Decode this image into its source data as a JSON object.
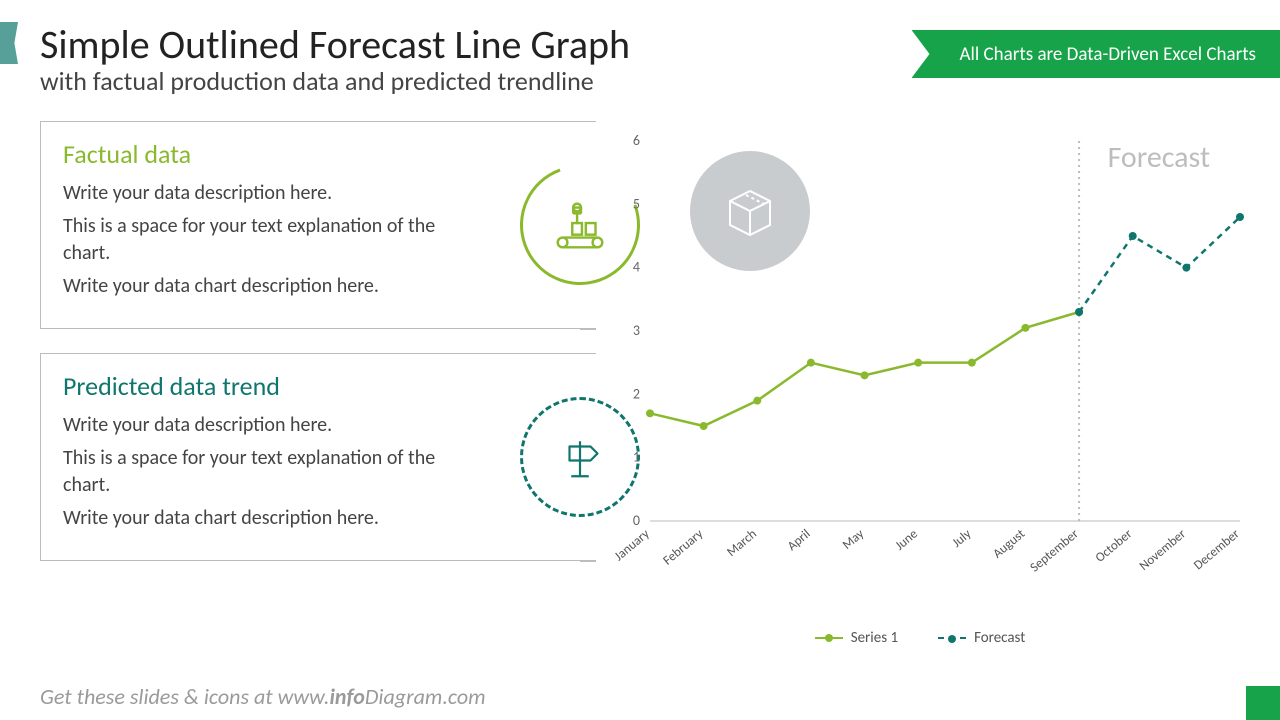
{
  "title": "Simple Outlined Forecast Line Graph",
  "subtitle": "with factual production data and predicted trendline",
  "ribbon": "All Charts are Data-Driven Excel Charts",
  "footer_prefix": "Get these slides & icons at www.",
  "footer_bold": "info",
  "footer_rest": "Diagram.com",
  "cards": [
    {
      "heading": "Factual data",
      "heading_color": "#8ab92d",
      "lines": [
        "Write your data description here.",
        "This is a space for your text explanation of the chart.",
        "Write your data chart description here."
      ]
    },
    {
      "heading": "Predicted data trend",
      "heading_color": "#0f766e",
      "lines": [
        "Write your data description here.",
        "This is a space for your text explanation of the chart.",
        "Write your data chart description here."
      ]
    }
  ],
  "chart": {
    "type": "line",
    "forecast_label": "Forecast",
    "ylim": [
      0,
      6
    ],
    "ytick_step": 1,
    "categories": [
      "January",
      "February",
      "March",
      "April",
      "May",
      "June",
      "July",
      "August",
      "September",
      "October",
      "November",
      "December"
    ],
    "series1": {
      "label": "Series 1",
      "color": "#8ab92d",
      "values": [
        1.7,
        1.5,
        1.9,
        2.5,
        2.3,
        2.5,
        2.5,
        3.05,
        3.3,
        null,
        null,
        null
      ]
    },
    "forecast": {
      "label": "Forecast",
      "color": "#0f766e",
      "values": [
        null,
        null,
        null,
        null,
        null,
        null,
        null,
        null,
        3.3,
        4.5,
        4.0,
        4.8
      ],
      "dashed": true
    },
    "divider_index": 8,
    "axis_color": "#e2e2e2",
    "tick_font": 12,
    "marker_r": 4,
    "line_w": 2.5
  }
}
